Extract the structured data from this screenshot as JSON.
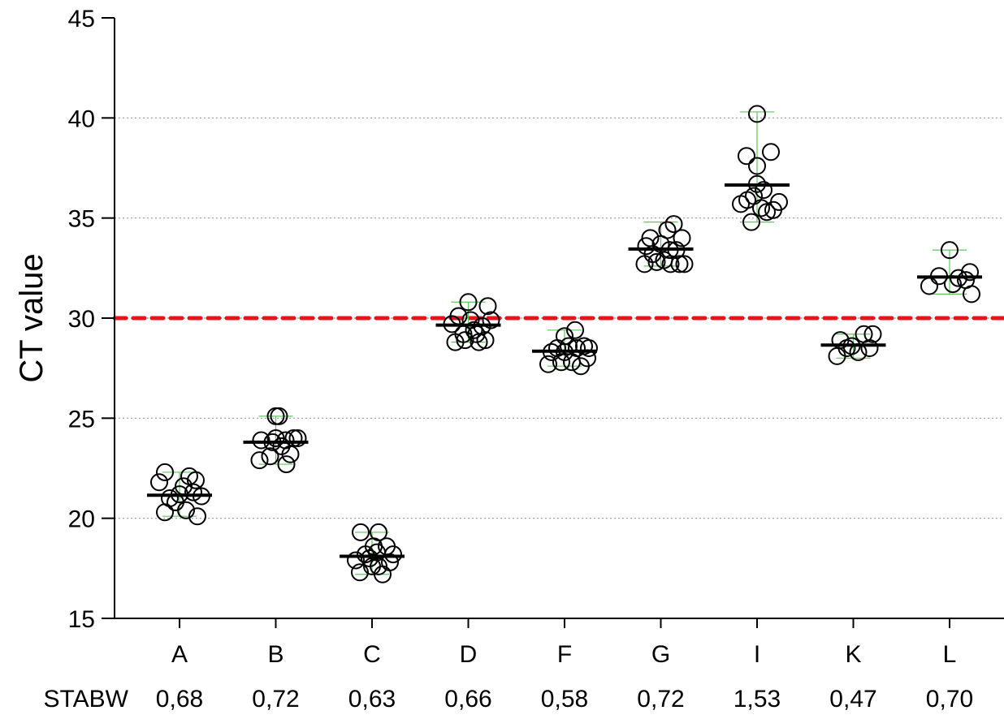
{
  "chart_data": {
    "type": "scatter",
    "title": "",
    "xlabel": "",
    "ylabel": "CT value",
    "ylim": [
      15,
      45
    ],
    "yticks": [
      15,
      20,
      25,
      30,
      35,
      40,
      45
    ],
    "grid": "horizontal dotted",
    "categories": [
      "A",
      "B",
      "C",
      "D",
      "F",
      "G",
      "I",
      "K",
      "L"
    ],
    "threshold": {
      "value": 30,
      "color": "#e8141c",
      "style": "dashed"
    },
    "sd_row_label": "STABW",
    "sd_values": [
      "0,68",
      "0,72",
      "0,63",
      "0,66",
      "0,58",
      "0,72",
      "1,53",
      "0,47",
      "0,70"
    ],
    "means": [
      21.15,
      23.8,
      18.1,
      29.65,
      28.35,
      33.45,
      36.65,
      28.65,
      32.05
    ],
    "range_bars": [
      [
        20.1,
        22.3
      ],
      [
        22.7,
        25.1
      ],
      [
        17.2,
        19.3
      ],
      [
        28.8,
        30.8
      ],
      [
        27.6,
        29.4
      ],
      [
        32.6,
        34.8
      ],
      [
        34.8,
        40.3
      ],
      [
        28.0,
        29.2
      ],
      [
        31.2,
        33.4
      ]
    ],
    "points": [
      [
        [
          -0.25,
          21.8
        ],
        [
          -0.18,
          22.3
        ],
        [
          -0.12,
          21.0
        ],
        [
          -0.18,
          20.3
        ],
        [
          -0.05,
          20.8
        ],
        [
          0.0,
          21.2
        ],
        [
          0.05,
          21.6
        ],
        [
          0.08,
          20.4
        ],
        [
          0.12,
          22.1
        ],
        [
          0.17,
          21.3
        ],
        [
          0.2,
          21.9
        ],
        [
          0.22,
          20.1
        ],
        [
          0.27,
          21.1
        ]
      ],
      [
        [
          -0.2,
          22.9
        ],
        [
          -0.18,
          23.9
        ],
        [
          -0.07,
          23.1
        ],
        [
          -0.04,
          23.8
        ],
        [
          0.0,
          24.0
        ],
        [
          0.0,
          25.1
        ],
        [
          0.04,
          25.1
        ],
        [
          0.07,
          23.6
        ],
        [
          0.12,
          23.9
        ],
        [
          0.13,
          22.7
        ],
        [
          0.18,
          23.2
        ],
        [
          0.22,
          24.0
        ],
        [
          0.27,
          24.0
        ]
      ],
      [
        [
          -0.2,
          17.9
        ],
        [
          -0.15,
          17.3
        ],
        [
          -0.14,
          19.3
        ],
        [
          -0.08,
          18.2
        ],
        [
          -0.03,
          18.0
        ],
        [
          0.0,
          17.6
        ],
        [
          0.02,
          18.6
        ],
        [
          0.06,
          18.3
        ],
        [
          0.08,
          17.6
        ],
        [
          0.08,
          19.3
        ],
        [
          0.13,
          17.2
        ],
        [
          0.18,
          18.6
        ],
        [
          0.22,
          17.8
        ],
        [
          0.26,
          18.2
        ]
      ],
      [
        [
          -0.2,
          29.7
        ],
        [
          -0.16,
          28.8
        ],
        [
          -0.12,
          30.1
        ],
        [
          -0.06,
          29.2
        ],
        [
          -0.04,
          28.9
        ],
        [
          0.0,
          30.8
        ],
        [
          0.03,
          29.9
        ],
        [
          0.07,
          29.4
        ],
        [
          0.1,
          29.2
        ],
        [
          0.13,
          28.8
        ],
        [
          0.17,
          29.6
        ],
        [
          0.21,
          28.9
        ],
        [
          0.24,
          30.6
        ],
        [
          0.28,
          29.9
        ]
      ],
      [
        [
          -0.2,
          27.7
        ],
        [
          -0.16,
          28.3
        ],
        [
          -0.09,
          28.5
        ],
        [
          -0.04,
          27.8
        ],
        [
          0.0,
          29.1
        ],
        [
          0.0,
          28.3
        ],
        [
          0.05,
          28.6
        ],
        [
          0.09,
          27.8
        ],
        [
          0.13,
          29.4
        ],
        [
          0.15,
          28.5
        ],
        [
          0.2,
          27.6
        ],
        [
          0.24,
          28.6
        ],
        [
          0.28,
          28.0
        ],
        [
          0.3,
          28.5
        ]
      ],
      [
        [
          -0.2,
          32.7
        ],
        [
          -0.18,
          33.6
        ],
        [
          -0.13,
          34.0
        ],
        [
          -0.1,
          33.2
        ],
        [
          -0.05,
          32.8
        ],
        [
          0.0,
          33.7
        ],
        [
          0.04,
          32.9
        ],
        [
          0.08,
          34.4
        ],
        [
          0.11,
          33.4
        ],
        [
          0.12,
          32.7
        ],
        [
          0.16,
          34.7
        ],
        [
          0.19,
          33.4
        ],
        [
          0.23,
          32.7
        ],
        [
          0.26,
          34.0
        ],
        [
          0.29,
          32.7
        ]
      ],
      [
        [
          -0.2,
          35.7
        ],
        [
          -0.13,
          38.1
        ],
        [
          -0.12,
          35.9
        ],
        [
          -0.07,
          34.8
        ],
        [
          -0.04,
          36.1
        ],
        [
          0.0,
          37.6
        ],
        [
          0.0,
          36.7
        ],
        [
          0.0,
          40.2
        ],
        [
          0.05,
          35.5
        ],
        [
          0.08,
          36.4
        ],
        [
          0.12,
          35.3
        ],
        [
          0.17,
          38.3
        ],
        [
          0.2,
          35.4
        ],
        [
          0.27,
          35.8
        ]
      ],
      [
        [
          -0.2,
          28.1
        ],
        [
          -0.16,
          28.9
        ],
        [
          -0.08,
          28.5
        ],
        [
          -0.02,
          28.6
        ],
        [
          0.06,
          28.3
        ],
        [
          0.13,
          29.2
        ],
        [
          0.2,
          28.5
        ],
        [
          0.24,
          29.2
        ]
      ],
      [
        [
          -0.25,
          31.6
        ],
        [
          -0.13,
          32.1
        ],
        [
          0.0,
          33.4
        ],
        [
          0.04,
          31.7
        ],
        [
          0.11,
          32.0
        ],
        [
          0.2,
          31.9
        ],
        [
          0.25,
          32.3
        ],
        [
          0.27,
          31.2
        ]
      ]
    ],
    "colors": {
      "point_stroke": "#000000",
      "mean_line": "#000000",
      "range_bar": "#5cc85c",
      "grid": "#9a9a9a",
      "axis": "#000000"
    }
  }
}
